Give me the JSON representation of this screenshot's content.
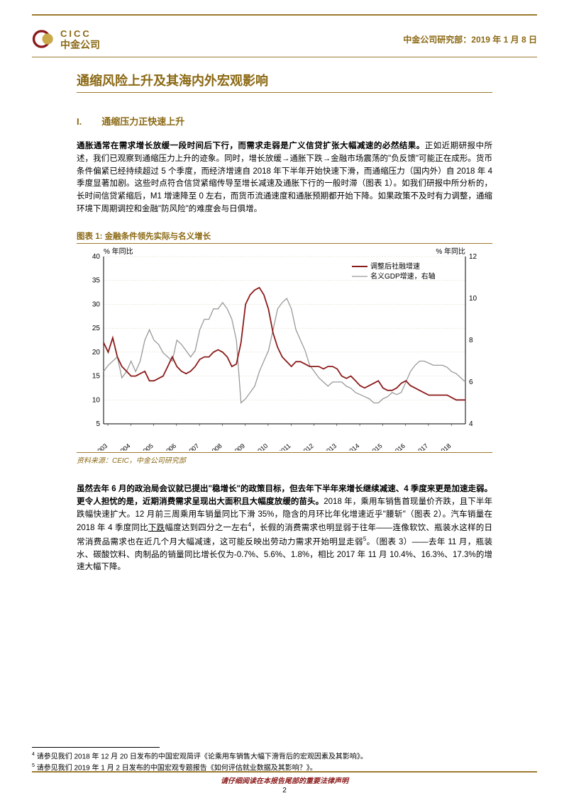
{
  "header": {
    "logo_en": "CICC",
    "logo_cn": "中金公司",
    "dept": "中金公司研究部：",
    "date": "2019 年 1 月 8 日"
  },
  "title": "通缩风险上升及其海内外宏观影响",
  "section": {
    "num": "I.",
    "title": "通缩压力正快速上升"
  },
  "para1": {
    "lead": "通胀通常在需求增长放缓一段时间后下行，而需求走弱是广义信贷扩张大幅减速的必然结果。",
    "body": "正如近期研报中所述，我们已观察到通缩压力上升的迹象。同时，增长放缓→通胀下跌→金融市场震荡的\"负反馈\"可能正在成形。货币条件偏紧已经持续超过 5 个季度，而经济增速自 2018 年下半年开始快速下滑，而通缩压力（国内外）自 2018 年 4 季度显著加剧。这些时点符合信贷紧缩传导至增长减速及通胀下行的一般时滞（图表 1）。如我们研报中所分析的，长时间信贷紧缩后，M1 增速降至 0 左右，而货币流通速度和通胀预期都开始下降。如果政策不及时有力调整，通缩环境下周期调控和金融\"防风险\"的难度会与日俱增。"
  },
  "chart": {
    "caption": "图表 1: 金融条件领先实际与名义增长",
    "source": "资料来源：CEIC，中金公司研究部",
    "ylabel_left": "% 年同比",
    "ylabel_right": "% 年同比",
    "y_left": {
      "min": 5,
      "max": 40,
      "step": 5
    },
    "y_right": {
      "min": 4,
      "max": 12,
      "step": 2
    },
    "x_labels": [
      "2003",
      "2004",
      "2005",
      "2006",
      "2007",
      "2008",
      "2009",
      "2010",
      "2011",
      "2012",
      "2013",
      "2014",
      "2015",
      "2016",
      "2017",
      "2018"
    ],
    "legend": {
      "s1": "调整后社融增速",
      "s2": "名义GDP增速，右轴"
    },
    "colors": {
      "s1": "#8b1a1a",
      "s2": "#999999",
      "grid": "#d9d0b8",
      "axis": "#000000",
      "text": "#000000"
    },
    "series1": [
      22,
      20,
      23,
      19,
      17,
      16,
      15,
      15,
      15.5,
      16,
      14,
      14,
      14.5,
      15,
      17,
      19,
      17,
      16,
      15.5,
      16,
      17,
      18.5,
      19,
      19,
      20,
      20.5,
      20,
      19,
      17,
      17.5,
      22,
      30,
      32,
      33,
      33.5,
      32,
      29,
      24,
      21,
      19,
      18,
      17,
      18,
      18,
      17.5,
      17,
      17,
      17,
      16.5,
      17,
      17,
      16.5,
      15,
      14.5,
      15,
      14,
      13,
      12.5,
      13,
      13.5,
      14,
      12.5,
      12,
      12,
      12.5,
      13.5,
      14,
      13,
      12.5,
      12,
      11.5,
      11,
      11,
      11,
      11,
      11,
      10.5,
      10,
      10,
      10
    ],
    "series2": [
      6.5,
      6.8,
      7.0,
      7.2,
      6.2,
      6.5,
      7.0,
      6.5,
      7.0,
      8.0,
      8.5,
      8.0,
      7.8,
      7.4,
      7.2,
      7.0,
      8.0,
      7.8,
      7.5,
      7.2,
      7.5,
      8.5,
      9.0,
      9.0,
      9.5,
      9.5,
      9.8,
      9.5,
      9.0,
      8.0,
      5.0,
      5.2,
      5.5,
      5.8,
      6.5,
      7.0,
      7.5,
      8.5,
      9.5,
      9.8,
      10.0,
      9.5,
      8.5,
      8.0,
      7.5,
      6.8,
      6.5,
      6.2,
      6.0,
      5.8,
      6.0,
      6.0,
      6.0,
      5.8,
      5.7,
      5.5,
      5.4,
      5.3,
      5.2,
      5.0,
      5.0,
      5.2,
      5.3,
      5.5,
      5.4,
      5.5,
      6.0,
      6.5,
      6.8,
      7.0,
      7.0,
      6.9,
      6.8,
      6.8,
      6.8,
      6.7,
      6.5,
      6.4,
      6.2,
      6.0
    ]
  },
  "para2": {
    "lead": "虽然去年 6 月的政治局会议就已提出\"稳增长\"的政策目标，但去年下半年来增长继续减速、4 季度来更是加速走弱。更令人担忧的是，近期消费需求呈现出大面积且大幅度放缓的苗头。",
    "body_a": "2018 年，乘用车销售首现量价齐跌，且下半年跌幅快速扩大。12 月前三周乘用车销量同比下滑 35%，隐含的月环比年化增速近乎\"腰斩\"（图表 2）。汽车销量在 2018 年 4 季度同比",
    "underlined": "下跌",
    "body_b": "幅度达到四分之一左右",
    "fn4": "4",
    "body_c": "，长假的消费需求也明显弱于往年——连像软饮、瓶装水这样的日常消费品需求也在近几个月大幅减速，这可能反映出劳动力需求开始明显走弱",
    "fn5": "5",
    "body_d": "。（图表 3）——去年 11 月，瓶装水、碳酸饮料、肉制品的销量同比增长仅为-0.7%、5.6%、1.8%，相比 2017 年 11 月 10.4%、16.3%、17.3%的增速大幅下降。"
  },
  "footnotes": {
    "f4": "请参见我们 2018 年 12 月 20 日发布的中国宏观简评《论乘用车销售大幅下滑背后的宏观因素及其影响》。",
    "f5": "请参见我们 2019 年 1 月 2 日发布的中国宏观专题报告《如何评估就业数据及其影响？》。"
  },
  "footer": {
    "disclaimer": "请仔细阅读在本报告尾部的重要法律声明",
    "page": "2"
  }
}
